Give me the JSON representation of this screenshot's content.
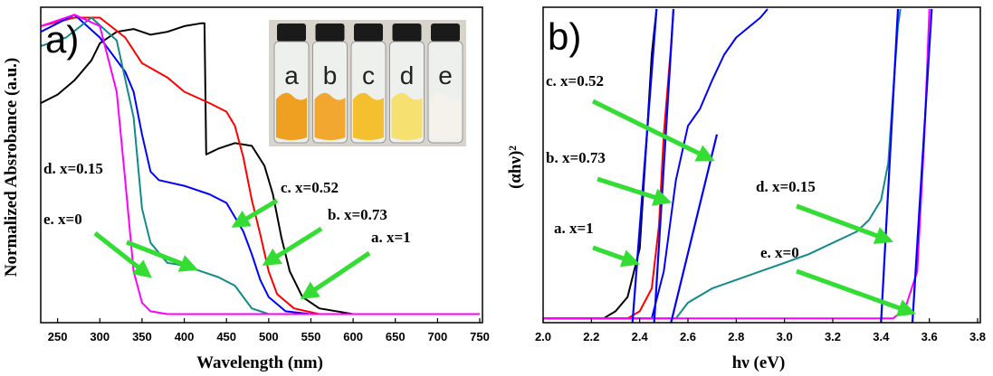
{
  "chart_data": [
    {
      "type": "line",
      "panel_label": "a)",
      "x_label": "Wavelength (nm)",
      "y_label": "Normalized Absrobance (a.u.)",
      "xlim": [
        230,
        750
      ],
      "xticks": [
        250,
        300,
        350,
        400,
        450,
        500,
        550,
        600,
        650,
        700,
        750
      ],
      "ylim": [
        0,
        1.1
      ],
      "inset_labels": [
        "a",
        "b",
        "c",
        "d",
        "e"
      ],
      "inset_colors": [
        "#f0a020",
        "#f2a830",
        "#f5c030",
        "#f5e070",
        "#f4f2ea"
      ],
      "series": [
        {
          "name": "a. x=1",
          "color": "#000000",
          "x": [
            230,
            250,
            270,
            290,
            300,
            320,
            340,
            360,
            380,
            400,
            420,
            424,
            426,
            440,
            460,
            480,
            495,
            505,
            515,
            525,
            540,
            560,
            600,
            750
          ],
          "values": [
            0.77,
            0.8,
            0.85,
            0.92,
            0.98,
            1.02,
            1.03,
            1.01,
            1.02,
            1.04,
            1.05,
            1.05,
            0.59,
            0.61,
            0.63,
            0.62,
            0.55,
            0.45,
            0.3,
            0.18,
            0.09,
            0.05,
            0.03,
            0.03
          ]
        },
        {
          "name": "b. x=0.73",
          "color": "#ff0000",
          "x": [
            230,
            270,
            300,
            330,
            350,
            380,
            400,
            430,
            450,
            460,
            470,
            480,
            490,
            500,
            510,
            530,
            560,
            750
          ],
          "values": [
            1.04,
            1.07,
            1.07,
            1.0,
            0.91,
            0.86,
            0.81,
            0.77,
            0.74,
            0.69,
            0.58,
            0.43,
            0.31,
            0.18,
            0.1,
            0.05,
            0.03,
            0.03
          ]
        },
        {
          "name": "c. x=0.52",
          "color": "#0000ff",
          "x": [
            230,
            270,
            300,
            330,
            340,
            350,
            360,
            370,
            400,
            430,
            450,
            460,
            470,
            480,
            490,
            500,
            520,
            550,
            750
          ],
          "values": [
            1.02,
            1.08,
            1.0,
            0.88,
            0.81,
            0.66,
            0.53,
            0.5,
            0.48,
            0.45,
            0.42,
            0.37,
            0.32,
            0.24,
            0.15,
            0.09,
            0.04,
            0.03,
            0.03
          ]
        },
        {
          "name": "d. x=0.15",
          "color": "#138a8a",
          "x": [
            230,
            260,
            290,
            320,
            340,
            350,
            360,
            380,
            400,
            420,
            440,
            460,
            470,
            480,
            500,
            750
          ],
          "values": [
            0.97,
            1.0,
            1.07,
            0.99,
            0.72,
            0.4,
            0.28,
            0.21,
            0.2,
            0.18,
            0.16,
            0.13,
            0.09,
            0.05,
            0.03,
            0.03
          ]
        },
        {
          "name": "e. x=0",
          "color": "#ff00ff",
          "x": [
            230,
            270,
            300,
            320,
            330,
            340,
            350,
            360,
            380,
            750
          ],
          "values": [
            1.04,
            1.08,
            1.04,
            0.81,
            0.5,
            0.18,
            0.07,
            0.04,
            0.03,
            0.03
          ]
        }
      ]
    },
    {
      "type": "line",
      "panel_label": "b)",
      "x_label": "hν (eV)",
      "y_label": "(αhν)²",
      "xlim": [
        2.0,
        3.8
      ],
      "xticks": [
        {
          "value": 2,
          "label": "2.0"
        },
        2.2,
        2.4,
        2.6,
        2.8,
        {
          "value": 3,
          "label": "3.0"
        },
        3.2,
        3.4,
        3.6,
        3.8
      ],
      "ylim": [
        0,
        1.1
      ],
      "series": [
        {
          "name": "a. x=1",
          "color": "#000000",
          "x": [
            2.0,
            2.25,
            2.3,
            2.35,
            2.4,
            2.43,
            2.45,
            2.47
          ],
          "values": [
            0.015,
            0.015,
            0.04,
            0.09,
            0.26,
            0.66,
            0.94,
            1.1
          ]
        },
        {
          "name": "b. x=0.73",
          "color": "#ff0000",
          "x": [
            2.0,
            2.35,
            2.4,
            2.45,
            2.48,
            2.5,
            2.53,
            2.54
          ],
          "values": [
            0.015,
            0.015,
            0.04,
            0.12,
            0.34,
            0.66,
            0.97,
            1.1
          ]
        },
        {
          "name": "c. x=0.52",
          "color": "#0000ff",
          "x": [
            2.0,
            2.45,
            2.5,
            2.55,
            2.6,
            2.65,
            2.7,
            2.75,
            2.8,
            2.9,
            2.93
          ],
          "values": [
            0.015,
            0.015,
            0.18,
            0.5,
            0.69,
            0.75,
            0.85,
            0.94,
            1.0,
            1.07,
            1.1
          ]
        },
        {
          "name": "d. x=0.15",
          "color": "#138a8a",
          "x": [
            2.0,
            2.55,
            2.6,
            2.7,
            2.8,
            2.9,
            3.0,
            3.1,
            3.2,
            3.3,
            3.35,
            3.4,
            3.43,
            3.45,
            3.47,
            3.48
          ],
          "values": [
            0.015,
            0.015,
            0.07,
            0.12,
            0.15,
            0.18,
            0.21,
            0.24,
            0.28,
            0.32,
            0.36,
            0.43,
            0.56,
            0.81,
            1.04,
            1.1
          ]
        },
        {
          "name": "e. x=0",
          "color": "#ff00ff",
          "x": [
            2.0,
            3.45,
            3.5,
            3.55,
            3.58,
            3.6
          ],
          "values": [
            0.015,
            0.015,
            0.05,
            0.18,
            0.66,
            1.1
          ]
        }
      ],
      "tangents": [
        {
          "color": "#0000ff",
          "x": [
            2.37,
            2.47
          ],
          "values": [
            0,
            1.1
          ]
        },
        {
          "color": "#0000ff",
          "x": [
            2.46,
            2.54
          ],
          "values": [
            0,
            1.1
          ]
        },
        {
          "color": "#0000ff",
          "x": [
            2.53,
            2.72
          ],
          "values": [
            0,
            0.66
          ]
        },
        {
          "color": "#0000ff",
          "x": [
            3.4,
            3.47
          ],
          "values": [
            0,
            1.1
          ]
        },
        {
          "color": "#0000ff",
          "x": [
            3.53,
            3.61
          ],
          "values": [
            0,
            1.1
          ]
        }
      ]
    }
  ]
}
